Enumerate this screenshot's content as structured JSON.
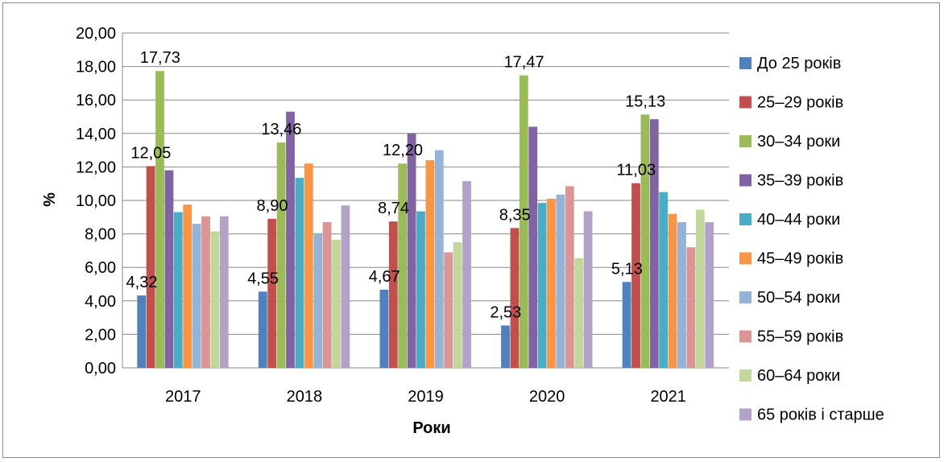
{
  "chart_data": {
    "type": "bar",
    "title": "",
    "xlabel": "Роки",
    "ylabel": "%",
    "ylim": [
      0,
      20
    ],
    "yticks": [
      "0,00",
      "2,00",
      "4,00",
      "6,00",
      "8,00",
      "10,00",
      "12,00",
      "14,00",
      "16,00",
      "18,00",
      "20,00"
    ],
    "grid": true,
    "legend_position": "right",
    "categories": [
      "2017",
      "2018",
      "2019",
      "2020",
      "2021"
    ],
    "series": [
      {
        "name": "До 25 років",
        "color": "#4F81BD",
        "values": [
          4.32,
          4.55,
          4.67,
          2.53,
          5.13
        ],
        "labels": [
          "4,32",
          "4,55",
          "4,67",
          "2,53",
          "5,13"
        ]
      },
      {
        "name": "25–29 років",
        "color": "#C0504D",
        "values": [
          12.05,
          8.9,
          8.74,
          8.35,
          11.03
        ],
        "labels": [
          "12,05",
          "8,90",
          "8,74",
          "8,35",
          "11,03"
        ]
      },
      {
        "name": "30–34 роки",
        "color": "#9BBB59",
        "values": [
          17.73,
          13.46,
          12.2,
          17.47,
          15.13
        ],
        "labels": [
          "17,73",
          "13,46",
          "12,20",
          "17,47",
          "15,13"
        ]
      },
      {
        "name": "35–39 років",
        "color": "#8064A2",
        "values": [
          11.8,
          15.3,
          14.0,
          14.4,
          14.85
        ]
      },
      {
        "name": "40–44 роки",
        "color": "#4BACC6",
        "values": [
          9.3,
          11.35,
          9.35,
          9.85,
          10.5
        ]
      },
      {
        "name": "45–49 років",
        "color": "#F79646",
        "values": [
          9.75,
          12.2,
          12.4,
          10.1,
          9.2
        ]
      },
      {
        "name": "50–54 роки",
        "color": "#95B3D7",
        "values": [
          8.6,
          8.05,
          13.0,
          10.35,
          8.7
        ]
      },
      {
        "name": "55–59 років",
        "color": "#D99694",
        "values": [
          9.05,
          8.7,
          6.9,
          10.85,
          7.2
        ]
      },
      {
        "name": "60–64 роки",
        "color": "#C3D69B",
        "values": [
          8.15,
          7.65,
          7.5,
          6.55,
          9.45
        ]
      },
      {
        "name": "65 років і старше",
        "color": "#B2A2C7",
        "values": [
          9.05,
          9.7,
          11.15,
          9.35,
          8.7
        ]
      }
    ]
  }
}
